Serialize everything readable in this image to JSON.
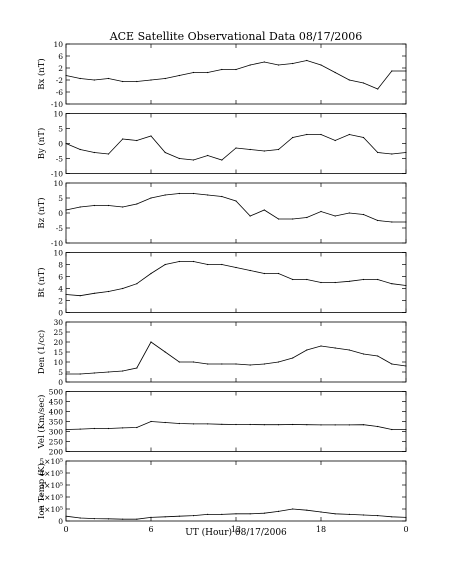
{
  "title": "ACE Satellite Observational Data  08/17/2006",
  "xlabel": "UT (Hour)  08/17/2006",
  "x_ticks": [
    "0",
    "6",
    "12",
    "18",
    "0"
  ],
  "chart_data": [
    {
      "type": "line",
      "ylabel": "Bx (nT)",
      "ylim": [
        -10,
        10
      ],
      "yticks": [
        "-10",
        "-6",
        "-2",
        "2",
        "6",
        "10"
      ],
      "x": [
        0,
        1,
        2,
        3,
        4,
        5,
        6,
        7,
        8,
        9,
        10,
        11,
        12,
        13,
        14,
        15,
        16,
        17,
        18,
        19,
        20,
        21,
        22,
        23,
        24
      ],
      "y": [
        -0.5,
        -1.5,
        -2,
        -1.5,
        -2.5,
        -2.5,
        -2,
        -1.5,
        -0.5,
        0.5,
        0.5,
        1.5,
        1.5,
        3,
        4,
        3,
        3.5,
        4.5,
        3,
        0.5,
        -2,
        -3,
        -5,
        1,
        1
      ]
    },
    {
      "type": "line",
      "ylabel": "By (nT)",
      "ylim": [
        -10,
        10
      ],
      "yticks": [
        "-10",
        "-5",
        "0",
        "5",
        "10"
      ],
      "x": [
        0,
        1,
        2,
        3,
        4,
        5,
        6,
        7,
        8,
        9,
        10,
        11,
        12,
        13,
        14,
        15,
        16,
        17,
        18,
        19,
        20,
        21,
        22,
        23,
        24
      ],
      "y": [
        0,
        -2,
        -3,
        -3.5,
        1.5,
        1,
        2.5,
        -3,
        -5,
        -5.5,
        -4,
        -5.5,
        -1.5,
        -2,
        -2.5,
        -2,
        2,
        3,
        3,
        1,
        3,
        2,
        -3,
        -3.5,
        -3
      ]
    },
    {
      "type": "line",
      "ylabel": "Bz (nT)",
      "ylim": [
        -10,
        10
      ],
      "yticks": [
        "-10",
        "-5",
        "0",
        "5",
        "10"
      ],
      "x": [
        0,
        1,
        2,
        3,
        4,
        5,
        6,
        7,
        8,
        9,
        10,
        11,
        12,
        13,
        14,
        15,
        16,
        17,
        18,
        19,
        20,
        21,
        22,
        23,
        24
      ],
      "y": [
        1,
        2,
        2.5,
        2.5,
        2,
        3,
        5,
        6,
        6.5,
        6.5,
        6,
        5.5,
        4,
        -1,
        1,
        -2,
        -2,
        -1.5,
        0.5,
        -1,
        0,
        -0.5,
        -2.5,
        -3,
        -3
      ]
    },
    {
      "type": "line",
      "ylabel": "Bt (nT)",
      "ylim": [
        0,
        10
      ],
      "yticks": [
        "0",
        "2",
        "4",
        "6",
        "8",
        "10"
      ],
      "x": [
        0,
        1,
        2,
        3,
        4,
        5,
        6,
        7,
        8,
        9,
        10,
        11,
        12,
        13,
        14,
        15,
        16,
        17,
        18,
        19,
        20,
        21,
        22,
        23,
        24
      ],
      "y": [
        3,
        2.8,
        3.2,
        3.5,
        4,
        4.8,
        6.5,
        8,
        8.5,
        8.5,
        8,
        8,
        7.5,
        7,
        6.5,
        6.5,
        5.5,
        5.5,
        5,
        5,
        5.2,
        5.5,
        5.5,
        4.8,
        4.5
      ]
    },
    {
      "type": "line",
      "ylabel": "Den (1/cc)",
      "ylim": [
        0,
        30
      ],
      "yticks": [
        "0",
        "5",
        "10",
        "15",
        "20",
        "25",
        "30"
      ],
      "x": [
        0,
        1,
        2,
        3,
        4,
        5,
        6,
        7,
        8,
        9,
        10,
        11,
        12,
        13,
        14,
        15,
        16,
        17,
        18,
        19,
        20,
        21,
        22,
        23,
        24
      ],
      "y": [
        4,
        4,
        4.5,
        5,
        5.5,
        7,
        20,
        15,
        10,
        10,
        9,
        9,
        9,
        8.5,
        9,
        10,
        12,
        16,
        18,
        17,
        16,
        14,
        13,
        9,
        8
      ]
    },
    {
      "type": "line",
      "ylabel": "Vel (Km/sec)",
      "ylim": [
        200,
        500
      ],
      "yticks": [
        "200",
        "250",
        "300",
        "350",
        "400",
        "450",
        "500"
      ],
      "x": [
        0,
        1,
        2,
        3,
        4,
        5,
        6,
        7,
        8,
        9,
        10,
        11,
        12,
        13,
        14,
        15,
        16,
        17,
        18,
        19,
        20,
        21,
        22,
        23,
        24
      ],
      "y": [
        310,
        312,
        315,
        315,
        318,
        320,
        350,
        345,
        340,
        338,
        338,
        336,
        335,
        335,
        334,
        334,
        335,
        334,
        333,
        333,
        333,
        334,
        325,
        310,
        310
      ]
    },
    {
      "type": "line",
      "ylabel": "Ion Temp (K)",
      "ylim": [
        0,
        500000
      ],
      "yticks": [
        "0",
        "1×10⁵",
        "2×10⁵",
        "3×10⁵",
        "4×10⁵",
        "5×10⁵"
      ],
      "x": [
        0,
        1,
        2,
        3,
        4,
        5,
        6,
        7,
        8,
        9,
        10,
        11,
        12,
        13,
        14,
        15,
        16,
        17,
        18,
        19,
        20,
        21,
        22,
        23,
        24
      ],
      "y": [
        40000,
        25000,
        20000,
        18000,
        15000,
        15000,
        30000,
        35000,
        40000,
        45000,
        55000,
        55000,
        60000,
        60000,
        65000,
        80000,
        100000,
        90000,
        75000,
        60000,
        55000,
        50000,
        45000,
        35000,
        30000
      ]
    }
  ]
}
